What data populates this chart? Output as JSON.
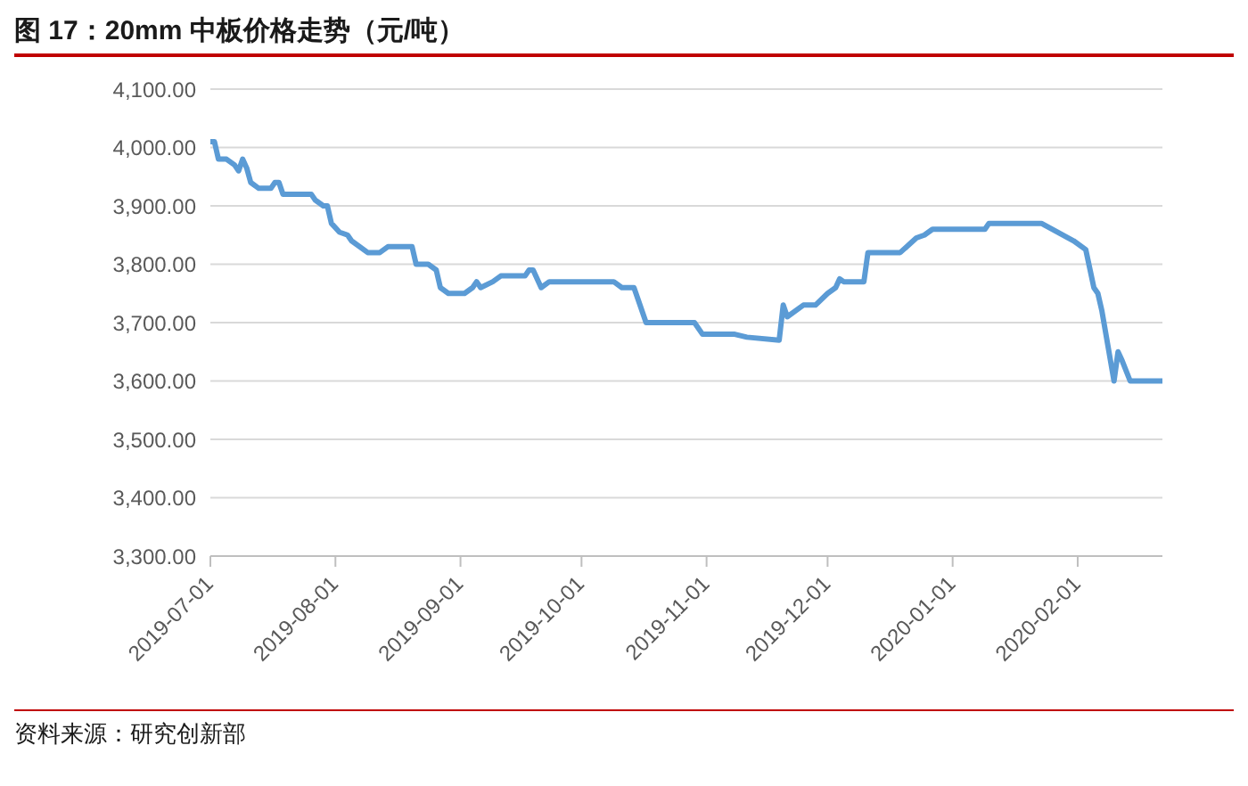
{
  "chart_data": {
    "type": "line",
    "title": "图 17：20mm 中板价格走势（元/吨）",
    "annotations": [
      "资料来源：研究创新部"
    ],
    "x": [
      "2019-07-01",
      "2019-07-02",
      "2019-07-03",
      "2019-07-05",
      "2019-07-07",
      "2019-07-08",
      "2019-07-09",
      "2019-07-10",
      "2019-07-11",
      "2019-07-13",
      "2019-07-16",
      "2019-07-17",
      "2019-07-18",
      "2019-07-19",
      "2019-07-26",
      "2019-07-27",
      "2019-07-29",
      "2019-07-30",
      "2019-07-31",
      "2019-08-02",
      "2019-08-04",
      "2019-08-05",
      "2019-08-09",
      "2019-08-12",
      "2019-08-14",
      "2019-08-20",
      "2019-08-21",
      "2019-08-24",
      "2019-08-26",
      "2019-08-27",
      "2019-08-29",
      "2019-09-02",
      "2019-09-04",
      "2019-09-05",
      "2019-09-06",
      "2019-09-09",
      "2019-09-11",
      "2019-09-17",
      "2019-09-18",
      "2019-09-19",
      "2019-09-21",
      "2019-09-23",
      "2019-10-09",
      "2019-10-11",
      "2019-10-14",
      "2019-10-15",
      "2019-10-17",
      "2019-10-29",
      "2019-10-31",
      "2019-11-08",
      "2019-11-11",
      "2019-11-19",
      "2019-11-20",
      "2019-11-21",
      "2019-11-25",
      "2019-11-28",
      "2019-12-01",
      "2019-12-03",
      "2019-12-04",
      "2019-12-05",
      "2019-12-10",
      "2019-12-11",
      "2019-12-19",
      "2019-12-23",
      "2019-12-25",
      "2019-12-27",
      "2020-01-09",
      "2020-01-10",
      "2020-01-23",
      "2020-01-31",
      "2020-02-03",
      "2020-02-05",
      "2020-02-06",
      "2020-02-07",
      "2020-02-10",
      "2020-02-11",
      "2020-02-12",
      "2020-02-14",
      "2020-02-22"
    ],
    "series": [
      {
        "color": "#5b9bd5",
        "values": [
          4010,
          4010,
          3980,
          3980,
          3970,
          3960,
          3980,
          3965,
          3940,
          3930,
          3930,
          3940,
          3940,
          3920,
          3920,
          3910,
          3900,
          3900,
          3870,
          3855,
          3850,
          3840,
          3820,
          3820,
          3830,
          3830,
          3800,
          3800,
          3790,
          3760,
          3750,
          3750,
          3760,
          3770,
          3760,
          3770,
          3780,
          3780,
          3790,
          3790,
          3760,
          3770,
          3770,
          3760,
          3760,
          3740,
          3700,
          3700,
          3680,
          3680,
          3675,
          3670,
          3730,
          3710,
          3730,
          3730,
          3750,
          3760,
          3775,
          3770,
          3770,
          3820,
          3820,
          3845,
          3850,
          3860,
          3860,
          3870,
          3870,
          3840,
          3825,
          3760,
          3750,
          3720,
          3600,
          3650,
          3635,
          3600,
          3600
        ]
      }
    ],
    "xlim": [
      "2019-07-01",
      "2020-02-22"
    ],
    "xticks": [
      "2019-07-01",
      "2019-08-01",
      "2019-09-01",
      "2019-10-01",
      "2019-11-01",
      "2019-12-01",
      "2020-01-01",
      "2020-02-01"
    ],
    "ylim": [
      3300,
      4100
    ],
    "yticks": [
      {
        "value": 3300,
        "label": "3,300.00"
      },
      {
        "value": 3400,
        "label": "3,400.00"
      },
      {
        "value": 3500,
        "label": "3,500.00"
      },
      {
        "value": 3600,
        "label": "3,600.00"
      },
      {
        "value": 3700,
        "label": "3,700.00"
      },
      {
        "value": 3800,
        "label": "3,800.00"
      },
      {
        "value": 3900,
        "label": "3,900.00"
      },
      {
        "value": 4000,
        "label": "4,000.00"
      },
      {
        "value": 4100,
        "label": "4,100.00"
      }
    ],
    "grid": "y",
    "legend": false,
    "marker": "none",
    "line_style": "solid"
  }
}
